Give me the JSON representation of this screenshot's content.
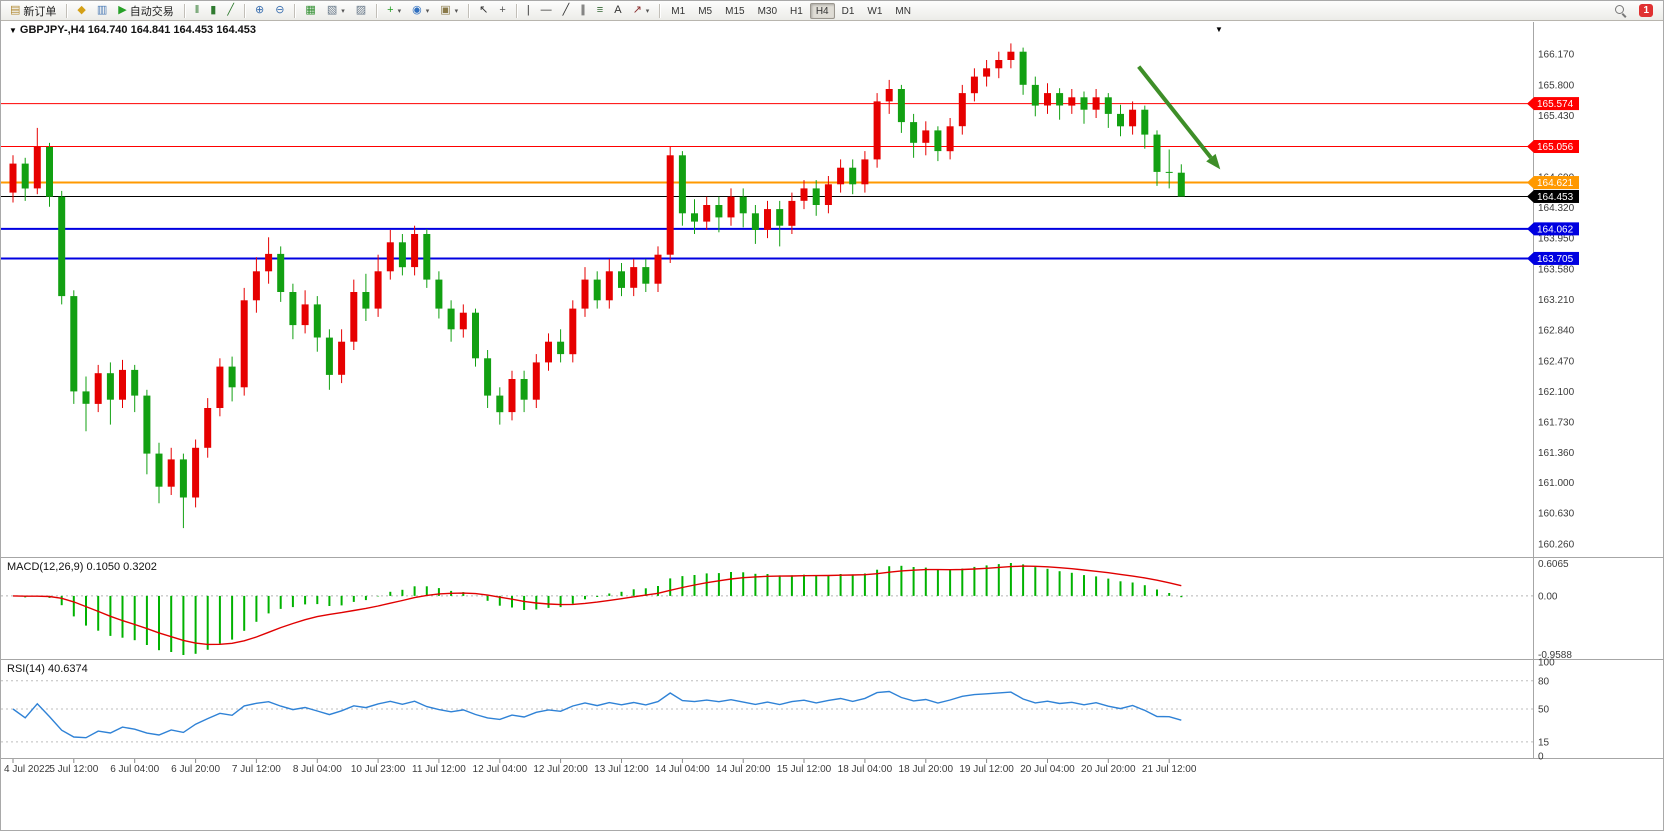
{
  "toolbar": {
    "items": [
      {
        "type": "text-button",
        "name": "new-order-button",
        "label": "新订单",
        "icon": {
          "name": "new-order-icon",
          "glyph": "▤",
          "color": "#b08830"
        }
      },
      {
        "type": "sep"
      },
      {
        "type": "icon",
        "name": "metaeditor-icon",
        "glyph": "◆",
        "color": "#d4a017"
      },
      {
        "type": "icon",
        "name": "market-watch-icon",
        "glyph": "▥",
        "color": "#4a7ab5"
      },
      {
        "type": "text-button",
        "name": "autotrading-button",
        "label": "自动交易",
        "icon": {
          "name": "autotrading-play-icon",
          "glyph": "▶",
          "color": "#27a127"
        }
      },
      {
        "type": "sep"
      },
      {
        "type": "icon",
        "name": "ohlc-bars-icon",
        "glyph": "‖",
        "color": "#2f7a2f"
      },
      {
        "type": "icon",
        "name": "candlestick-chart-icon",
        "glyph": "▮",
        "color": "#2f7a2f"
      },
      {
        "type": "icon",
        "name": "line-chart-icon",
        "glyph": "╱",
        "color": "#2f7a2f"
      },
      {
        "type": "sep"
      },
      {
        "type": "icon",
        "name": "zoom-in-icon",
        "glyph": "⊕",
        "color": "#3a6fb0"
      },
      {
        "type": "icon",
        "name": "zoom-out-icon",
        "glyph": "⊖",
        "color": "#3a6fb0"
      },
      {
        "type": "sep"
      },
      {
        "type": "icon",
        "name": "tile-windows-icon",
        "glyph": "▦",
        "color": "#2f8f2f"
      },
      {
        "type": "icon",
        "name": "cascade-windows-icon",
        "glyph": "▧",
        "color": "#667788",
        "dropdown": true
      },
      {
        "type": "icon",
        "name": "arrange-windows-icon",
        "glyph": "▨",
        "color": "#667788"
      },
      {
        "type": "sep"
      },
      {
        "type": "icon",
        "name": "indicators-icon",
        "glyph": "+",
        "color": "#1f9e1f",
        "dropdown": true
      },
      {
        "type": "icon",
        "name": "periods-icon",
        "glyph": "◉",
        "color": "#2f6fbf",
        "dropdown": true
      },
      {
        "type": "icon",
        "name": "templates-icon",
        "glyph": "▣",
        "color": "#8a7a4a",
        "dropdown": true
      },
      {
        "type": "sep"
      },
      {
        "type": "icon",
        "name": "cursor-icon",
        "glyph": "↖",
        "color": "#333333"
      },
      {
        "type": "icon",
        "name": "crosshair-icon",
        "glyph": "+",
        "color": "#555555"
      },
      {
        "type": "sep"
      },
      {
        "type": "icon",
        "name": "vertical-line-icon",
        "glyph": "|",
        "color": "#333333"
      },
      {
        "type": "icon",
        "name": "horizontal-line-icon",
        "glyph": "—",
        "color": "#333333"
      },
      {
        "type": "icon",
        "name": "trendline-icon",
        "glyph": "╱",
        "color": "#333333"
      },
      {
        "type": "icon",
        "name": "equidistant-channel-icon",
        "glyph": "∥",
        "color": "#333333"
      },
      {
        "type": "icon",
        "name": "fibonacci-icon",
        "glyph": "≡",
        "color": "#336633"
      },
      {
        "type": "icon",
        "name": "text-label-icon",
        "glyph": "A",
        "color": "#333333"
      },
      {
        "type": "icon",
        "name": "arrows-objects-icon",
        "glyph": "↗",
        "color": "#8a2f2f",
        "dropdown": true
      },
      {
        "type": "sep"
      },
      {
        "type": "timeframes"
      },
      {
        "type": "spacer"
      },
      {
        "type": "search"
      },
      {
        "type": "badge",
        "name": "notification-badge",
        "label": "1"
      }
    ],
    "timeframes": [
      {
        "label": "M1"
      },
      {
        "label": "M5"
      },
      {
        "label": "M15"
      },
      {
        "label": "M30"
      },
      {
        "label": "H1"
      },
      {
        "label": "H4",
        "active": true
      },
      {
        "label": "D1"
      },
      {
        "label": "W1"
      },
      {
        "label": "MN"
      }
    ]
  },
  "chart": {
    "title": "GBPJPY-,H4 164.740 164.841 164.453 164.453"
  },
  "chart_data": {
    "type": "candlestick",
    "symbol": "GBPJPY-",
    "period": "H4",
    "ohlc_display": {
      "open": "164.740",
      "high": "164.841",
      "low": "164.453",
      "close": "164.453"
    },
    "colors": {
      "bull": "#e60000",
      "bear": "#12a012",
      "macd_hist": "#00b200",
      "macd_signal": "#e00000",
      "rsi_line": "#2f82d6",
      "axis_text": "#3a3a3a",
      "level_dash": "#bdbdbd"
    },
    "price_axis": {
      "labels": [
        "166.170",
        "165.800",
        "165.430",
        "164.690",
        "164.320",
        "163.950",
        "163.580",
        "163.210",
        "162.840",
        "162.470",
        "162.100",
        "161.730",
        "161.360",
        "161.000",
        "160.630",
        "160.260"
      ]
    },
    "hlines": [
      {
        "price": 165.574,
        "label": "165.574",
        "color": "#ff0000",
        "width": 1
      },
      {
        "price": 165.056,
        "label": "165.056",
        "color": "#ff0000",
        "width": 1
      },
      {
        "price": 164.621,
        "label": "164.621",
        "color": "#ff9900",
        "width": 2
      },
      {
        "price": 164.062,
        "label": "164.062",
        "color": "#0000e0",
        "width": 2
      },
      {
        "price": 163.705,
        "label": "163.705",
        "color": "#0000e0",
        "width": 2
      }
    ],
    "current_price": {
      "price": 164.453,
      "label": "164.453",
      "color": "#000000"
    },
    "arrow": {
      "from_index": 92.5,
      "from_price": 166.02,
      "to_index": 99.2,
      "to_price": 164.78,
      "color": "#3e8e28",
      "width": 4
    },
    "candles": [
      [
        164.5,
        164.95,
        164.38,
        164.85
      ],
      [
        164.85,
        164.92,
        164.4,
        164.55
      ],
      [
        164.55,
        165.28,
        164.48,
        165.05
      ],
      [
        165.05,
        165.1,
        164.33,
        164.45
      ],
      [
        164.45,
        164.52,
        163.15,
        163.25
      ],
      [
        163.25,
        163.32,
        161.95,
        162.1
      ],
      [
        162.1,
        162.28,
        161.62,
        161.95
      ],
      [
        161.95,
        162.42,
        161.85,
        162.32
      ],
      [
        162.32,
        162.45,
        161.7,
        162.0
      ],
      [
        162.0,
        162.48,
        161.9,
        162.36
      ],
      [
        162.36,
        162.42,
        161.85,
        162.05
      ],
      [
        162.05,
        162.12,
        161.1,
        161.35
      ],
      [
        161.35,
        161.48,
        160.75,
        160.95
      ],
      [
        160.95,
        161.42,
        160.85,
        161.28
      ],
      [
        161.28,
        161.35,
        160.45,
        160.82
      ],
      [
        160.82,
        161.52,
        160.7,
        161.42
      ],
      [
        161.42,
        162.02,
        161.3,
        161.9
      ],
      [
        161.9,
        162.5,
        161.8,
        162.4
      ],
      [
        162.4,
        162.52,
        161.98,
        162.15
      ],
      [
        162.15,
        163.35,
        162.05,
        163.2
      ],
      [
        163.2,
        163.72,
        163.05,
        163.55
      ],
      [
        163.55,
        163.96,
        163.4,
        163.76
      ],
      [
        163.76,
        163.85,
        163.18,
        163.3
      ],
      [
        163.3,
        163.4,
        162.73,
        162.9
      ],
      [
        162.9,
        163.32,
        162.8,
        163.15
      ],
      [
        163.15,
        163.25,
        162.58,
        162.75
      ],
      [
        162.75,
        162.85,
        162.12,
        162.3
      ],
      [
        162.3,
        162.85,
        162.2,
        162.7
      ],
      [
        162.7,
        163.45,
        162.6,
        163.3
      ],
      [
        163.3,
        163.52,
        162.95,
        163.1
      ],
      [
        163.1,
        163.75,
        163.0,
        163.55
      ],
      [
        163.55,
        164.05,
        163.45,
        163.9
      ],
      [
        163.9,
        164.0,
        163.5,
        163.6
      ],
      [
        163.6,
        164.1,
        163.5,
        164.0
      ],
      [
        164.0,
        164.06,
        163.35,
        163.45
      ],
      [
        163.45,
        163.55,
        162.98,
        163.1
      ],
      [
        163.1,
        163.2,
        162.7,
        162.85
      ],
      [
        162.85,
        163.15,
        162.75,
        163.05
      ],
      [
        163.05,
        163.1,
        162.4,
        162.5
      ],
      [
        162.5,
        162.6,
        161.9,
        162.05
      ],
      [
        162.05,
        162.15,
        161.7,
        161.85
      ],
      [
        161.85,
        162.35,
        161.75,
        162.25
      ],
      [
        162.25,
        162.35,
        161.85,
        162.0
      ],
      [
        162.0,
        162.55,
        161.9,
        162.45
      ],
      [
        162.45,
        162.8,
        162.35,
        162.7
      ],
      [
        162.7,
        162.85,
        162.45,
        162.55
      ],
      [
        162.55,
        163.2,
        162.45,
        163.1
      ],
      [
        163.1,
        163.6,
        163.0,
        163.45
      ],
      [
        163.45,
        163.55,
        163.1,
        163.2
      ],
      [
        163.2,
        163.7,
        163.1,
        163.55
      ],
      [
        163.55,
        163.65,
        163.25,
        163.35
      ],
      [
        163.35,
        163.7,
        163.25,
        163.6
      ],
      [
        163.6,
        163.7,
        163.3,
        163.4
      ],
      [
        163.4,
        163.85,
        163.3,
        163.75
      ],
      [
        163.75,
        165.05,
        163.65,
        164.95
      ],
      [
        164.95,
        165.0,
        164.1,
        164.25
      ],
      [
        164.25,
        164.42,
        164.0,
        164.15
      ],
      [
        164.15,
        164.45,
        164.05,
        164.35
      ],
      [
        164.35,
        164.45,
        164.02,
        164.2
      ],
      [
        164.2,
        164.55,
        164.1,
        164.45
      ],
      [
        164.45,
        164.55,
        164.08,
        164.25
      ],
      [
        164.25,
        164.35,
        163.88,
        164.05
      ],
      [
        164.05,
        164.4,
        163.95,
        164.3
      ],
      [
        164.3,
        164.4,
        163.85,
        164.1
      ],
      [
        164.1,
        164.5,
        164.0,
        164.4
      ],
      [
        164.4,
        164.65,
        164.3,
        164.55
      ],
      [
        164.55,
        164.65,
        164.22,
        164.35
      ],
      [
        164.35,
        164.7,
        164.25,
        164.6
      ],
      [
        164.6,
        164.9,
        164.5,
        164.8
      ],
      [
        164.8,
        164.9,
        164.48,
        164.6
      ],
      [
        164.6,
        165.0,
        164.5,
        164.9
      ],
      [
        164.9,
        165.7,
        164.8,
        165.6
      ],
      [
        165.6,
        165.86,
        165.45,
        165.75
      ],
      [
        165.75,
        165.8,
        165.22,
        165.35
      ],
      [
        165.35,
        165.45,
        164.92,
        165.1
      ],
      [
        165.1,
        165.36,
        164.95,
        165.25
      ],
      [
        165.25,
        165.3,
        164.88,
        165.0
      ],
      [
        165.0,
        165.4,
        164.9,
        165.3
      ],
      [
        165.3,
        165.8,
        165.2,
        165.7
      ],
      [
        165.7,
        166.0,
        165.6,
        165.9
      ],
      [
        165.9,
        166.1,
        165.78,
        166.0
      ],
      [
        166.0,
        166.2,
        165.88,
        166.1
      ],
      [
        166.1,
        166.3,
        166.0,
        166.2
      ],
      [
        166.2,
        166.25,
        165.68,
        165.8
      ],
      [
        165.8,
        165.9,
        165.42,
        165.55
      ],
      [
        165.55,
        165.82,
        165.45,
        165.7
      ],
      [
        165.7,
        165.76,
        165.38,
        165.55
      ],
      [
        165.55,
        165.75,
        165.45,
        165.65
      ],
      [
        165.65,
        165.72,
        165.33,
        165.5
      ],
      [
        165.5,
        165.75,
        165.4,
        165.65
      ],
      [
        165.65,
        165.7,
        165.28,
        165.45
      ],
      [
        165.45,
        165.56,
        165.18,
        165.3
      ],
      [
        165.3,
        165.6,
        165.2,
        165.5
      ],
      [
        165.5,
        165.55,
        165.03,
        165.2
      ],
      [
        165.2,
        165.25,
        164.58,
        164.75
      ],
      [
        164.75,
        165.02,
        164.55,
        164.74
      ],
      [
        164.74,
        164.841,
        164.453,
        164.453
      ]
    ],
    "time_labels": [
      {
        "i": 0,
        "t": "4 Jul 2022"
      },
      {
        "i": 5,
        "t": "5 Jul 12:00"
      },
      {
        "i": 10,
        "t": "6 Jul 04:00"
      },
      {
        "i": 15,
        "t": "6 Jul 20:00"
      },
      {
        "i": 20,
        "t": "7 Jul 12:00"
      },
      {
        "i": 25,
        "t": "8 Jul 04:00"
      },
      {
        "i": 30,
        "t": "10 Jul 23:00"
      },
      {
        "i": 35,
        "t": "11 Jul 12:00"
      },
      {
        "i": 40,
        "t": "12 Jul 04:00"
      },
      {
        "i": 45,
        "t": "12 Jul 20:00"
      },
      {
        "i": 50,
        "t": "13 Jul 12:00"
      },
      {
        "i": 55,
        "t": "14 Jul 04:00"
      },
      {
        "i": 60,
        "t": "14 Jul 20:00"
      },
      {
        "i": 65,
        "t": "15 Jul 12:00"
      },
      {
        "i": 70,
        "t": "18 Jul 04:00"
      },
      {
        "i": 75,
        "t": "18 Jul 20:00"
      },
      {
        "i": 80,
        "t": "19 Jul 12:00"
      },
      {
        "i": 85,
        "t": "20 Jul 04:00"
      },
      {
        "i": 90,
        "t": "20 Jul 20:00"
      },
      {
        "i": 95,
        "t": "21 Jul 12:00"
      }
    ],
    "macd": {
      "display": "MACD(12,26,9) 0.1050 0.3202",
      "axis_labels": [
        "0.6065",
        "0.00",
        "-0.9588"
      ]
    },
    "rsi": {
      "display": "RSI(14) 40.6374",
      "levels": [
        80,
        50,
        15
      ],
      "axis_labels": [
        "100",
        "80",
        "50",
        "15",
        "0"
      ]
    }
  }
}
